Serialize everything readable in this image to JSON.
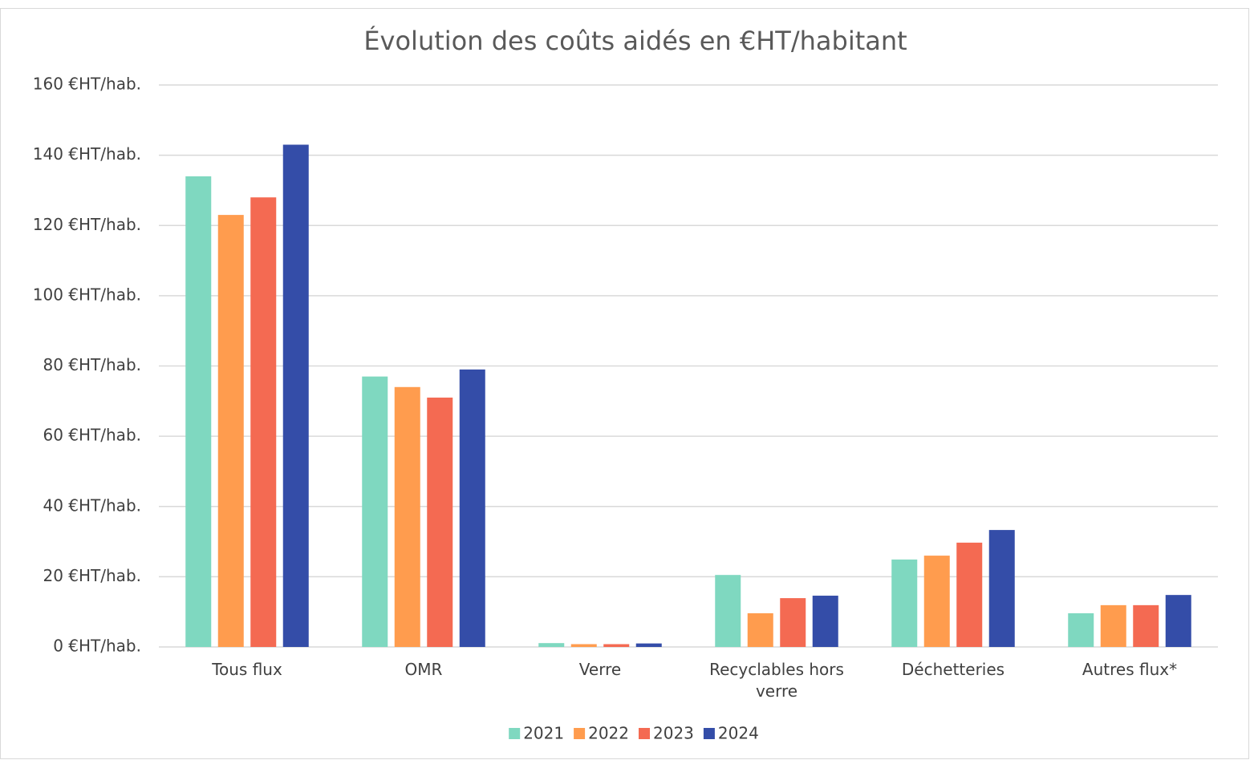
{
  "chart_data": {
    "type": "bar",
    "title": "Évolution des coûts aidés en €HT/habitant",
    "categories": [
      "Tous flux",
      "OMR",
      "Verre",
      "Recyclables hors verre",
      "Déchetteries",
      "Autres flux*"
    ],
    "series": [
      {
        "name": "2021",
        "color": "#7fd8c0",
        "values": [
          134,
          77,
          1.1,
          20.5,
          24.9,
          9.6
        ]
      },
      {
        "name": "2022",
        "color": "#ff9c4e",
        "values": [
          123,
          74,
          0.8,
          9.6,
          26,
          11.9
        ]
      },
      {
        "name": "2023",
        "color": "#f46a52",
        "values": [
          128,
          71,
          0.8,
          13.9,
          29.7,
          11.9
        ]
      },
      {
        "name": "2024",
        "color": "#344da8",
        "values": [
          143,
          79,
          1.0,
          14.6,
          33.3,
          14.8
        ]
      }
    ],
    "ylim": [
      0,
      160
    ],
    "yticks": [
      {
        "value": 0,
        "label": "0 €HT/hab."
      },
      {
        "value": 20,
        "label": "20 €HT/hab."
      },
      {
        "value": 40,
        "label": "40 €HT/hab."
      },
      {
        "value": 60,
        "label": "60 €HT/hab."
      },
      {
        "value": 80,
        "label": "80 €HT/hab."
      },
      {
        "value": 100,
        "label": "100 €HT/hab."
      },
      {
        "value": 120,
        "label": "120 €HT/hab."
      },
      {
        "value": 140,
        "label": "140 €HT/hab."
      },
      {
        "value": 160,
        "label": "160 €HT/hab."
      }
    ],
    "grid": true,
    "legend": "bottom"
  }
}
